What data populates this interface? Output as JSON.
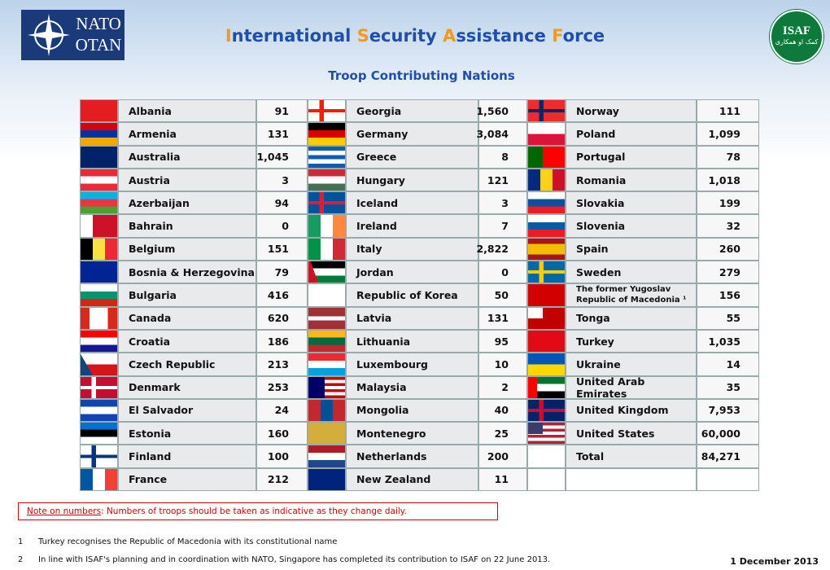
{
  "header": {
    "logo_left": [
      "NATO",
      "OTAN"
    ],
    "title": "International Security Assistance Force",
    "logo_right": [
      "ISAF",
      "کمک او همکاری"
    ]
  },
  "subtitle": "Troop Contributing Nations",
  "table": {
    "columns": [
      [
        [
          "Albania",
          "91"
        ],
        [
          "Armenia",
          "131"
        ],
        [
          "Australia",
          "1,045"
        ],
        [
          "Austria",
          "3"
        ],
        [
          "Azerbaijan",
          "94"
        ],
        [
          "Bahrain",
          "0"
        ],
        [
          "Belgium",
          "151"
        ],
        [
          "Bosnia & Herzegovina",
          "79"
        ],
        [
          "Bulgaria",
          "416"
        ],
        [
          "Canada",
          "620"
        ],
        [
          "Croatia",
          "186"
        ],
        [
          "Czech Republic",
          "213"
        ],
        [
          "Denmark",
          "253"
        ],
        [
          "El Salvador",
          "24"
        ],
        [
          "Estonia",
          "160"
        ],
        [
          "Finland",
          "100"
        ],
        [
          "France",
          "212"
        ]
      ],
      [
        [
          "Georgia",
          "1,560"
        ],
        [
          "Germany",
          "3,084"
        ],
        [
          "Greece",
          "8"
        ],
        [
          "Hungary",
          "121"
        ],
        [
          "Iceland",
          "3"
        ],
        [
          "Ireland",
          "7"
        ],
        [
          "Italy",
          "2,822"
        ],
        [
          "Jordan",
          "0"
        ],
        [
          "Republic of Korea",
          "50"
        ],
        [
          "Latvia",
          "131"
        ],
        [
          "Lithuania",
          "95"
        ],
        [
          "Luxembourg",
          "10"
        ],
        [
          "Malaysia",
          "2"
        ],
        [
          "Mongolia",
          "40"
        ],
        [
          "Montenegro",
          "25"
        ],
        [
          "Netherlands",
          "200"
        ],
        [
          "New Zealand",
          "11"
        ]
      ],
      [
        [
          "Norway",
          "111"
        ],
        [
          "Poland",
          "1,099"
        ],
        [
          "Portugal",
          "78"
        ],
        [
          "Romania",
          "1,018"
        ],
        [
          "Slovakia",
          "199"
        ],
        [
          "Slovenia",
          "32"
        ],
        [
          "Spain",
          "260"
        ],
        [
          "Sweden",
          "279"
        ],
        [
          "The former Yugoslav Republic of Macedonia ¹",
          "156"
        ],
        [
          "Tonga",
          "55"
        ],
        [
          "Turkey",
          "1,035"
        ],
        [
          "Ukraine",
          "14"
        ],
        [
          "United Arab Emirates",
          "35"
        ],
        [
          "United Kingdom",
          "7,953"
        ],
        [
          "United States",
          "60,000"
        ],
        [
          "Total",
          "84,271"
        ]
      ]
    ]
  },
  "note": {
    "label": "Note on numbers",
    "text": ": Numbers of troops should be taken as indicative as they change daily."
  },
  "footnotes": [
    [
      "1",
      "Turkey recognises the Republic of Macedonia with its constitutional name"
    ],
    [
      "2",
      "In line with ISAF's planning and in coordination with NATO, Singapore has completed its contribution to ISAF on 22 June 2013."
    ]
  ],
  "date": "1 December 2013"
}
